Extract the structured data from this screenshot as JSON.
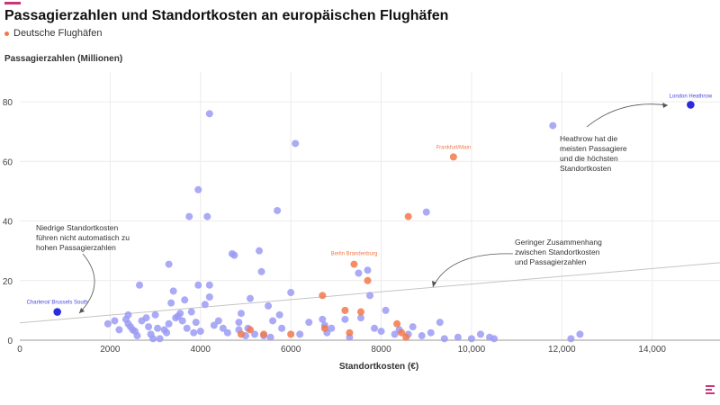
{
  "header": {
    "title": "Passagierzahlen und Standortkosten an europäischen Flughäfen"
  },
  "legend": {
    "items": [
      {
        "label": "Deutsche Flughäfen",
        "color": "#f2784b"
      }
    ]
  },
  "colors": {
    "other": "#9b9bf5",
    "german": "#f2784b",
    "highlight": "#2b2be0",
    "trend": "#c4c4c4",
    "grid": "#ececec"
  },
  "chart_data": {
    "type": "scatter",
    "title": "Passagierzahlen und Standortkosten an europäischen Flughäfen",
    "xlabel": "Standortkosten (€)",
    "ylabel": "Passagierzahlen (Millionen)",
    "xlim": [
      0,
      15500
    ],
    "ylim": [
      0,
      90
    ],
    "x_ticks": [
      0,
      2000,
      4000,
      6000,
      8000,
      10000,
      12000,
      14000
    ],
    "x_tick_labels": [
      "0",
      "2000",
      "4000",
      "6000",
      "8000",
      "10,000",
      "12,000",
      "14,000"
    ],
    "y_ticks": [
      0,
      20,
      40,
      60,
      80
    ],
    "y_tick_labels": [
      "0",
      "20",
      "40",
      "60",
      "80"
    ],
    "grid": true,
    "series": [
      {
        "name": "",
        "color": "#9b9bf5",
        "points": [
          [
            1950,
            5.5
          ],
          [
            2100,
            6.5
          ],
          [
            2200,
            3.5
          ],
          [
            2350,
            7
          ],
          [
            2400,
            8.5
          ],
          [
            2400,
            5.5
          ],
          [
            2450,
            4.5
          ],
          [
            2500,
            3.5
          ],
          [
            2550,
            3
          ],
          [
            2600,
            1.5
          ],
          [
            2650,
            18.5
          ],
          [
            2700,
            6.5
          ],
          [
            2800,
            7.5
          ],
          [
            2850,
            4.5
          ],
          [
            2900,
            2
          ],
          [
            2950,
            0.5
          ],
          [
            3000,
            8.5
          ],
          [
            3050,
            4
          ],
          [
            3100,
            0.5
          ],
          [
            3200,
            3.5
          ],
          [
            3250,
            2.5
          ],
          [
            3300,
            5.5
          ],
          [
            3300,
            25.5
          ],
          [
            3350,
            12.5
          ],
          [
            3400,
            16.5
          ],
          [
            3450,
            7.5
          ],
          [
            3500,
            8
          ],
          [
            3550,
            9
          ],
          [
            3600,
            6.5
          ],
          [
            3650,
            13.5
          ],
          [
            3700,
            4
          ],
          [
            3750,
            41.5
          ],
          [
            3800,
            9.5
          ],
          [
            3850,
            2.5
          ],
          [
            3900,
            6
          ],
          [
            3950,
            18.5
          ],
          [
            3950,
            50.5
          ],
          [
            4000,
            3
          ],
          [
            4100,
            12
          ],
          [
            4150,
            41.5
          ],
          [
            4200,
            76
          ],
          [
            4200,
            18.5
          ],
          [
            4200,
            14.5
          ],
          [
            4300,
            5
          ],
          [
            4400,
            6.5
          ],
          [
            4500,
            4
          ],
          [
            4600,
            2.5
          ],
          [
            4700,
            29
          ],
          [
            4750,
            28.5
          ],
          [
            4850,
            6
          ],
          [
            4850,
            3.5
          ],
          [
            4900,
            9
          ],
          [
            5000,
            1.5
          ],
          [
            5050,
            4
          ],
          [
            5100,
            14
          ],
          [
            5200,
            2
          ],
          [
            5300,
            30
          ],
          [
            5350,
            23
          ],
          [
            5400,
            1.5
          ],
          [
            5500,
            11.5
          ],
          [
            5550,
            1
          ],
          [
            5600,
            6.5
          ],
          [
            5700,
            43.5
          ],
          [
            5750,
            8.5
          ],
          [
            5800,
            4
          ],
          [
            6000,
            16
          ],
          [
            6100,
            66
          ],
          [
            6200,
            2
          ],
          [
            6400,
            6
          ],
          [
            6700,
            7
          ],
          [
            6750,
            5
          ],
          [
            6800,
            2.5
          ],
          [
            6900,
            4
          ],
          [
            7200,
            7
          ],
          [
            7300,
            1
          ],
          [
            7500,
            22.5
          ],
          [
            7550,
            7.5
          ],
          [
            7700,
            23.5
          ],
          [
            7750,
            15
          ],
          [
            7850,
            4
          ],
          [
            8000,
            3
          ],
          [
            8100,
            10
          ],
          [
            8300,
            2
          ],
          [
            8400,
            3.5
          ],
          [
            8600,
            2
          ],
          [
            8700,
            4.5
          ],
          [
            8900,
            1.5
          ],
          [
            9000,
            43
          ],
          [
            9100,
            2.5
          ],
          [
            9300,
            6
          ],
          [
            9400,
            0.5
          ],
          [
            9700,
            1
          ],
          [
            10000,
            0.5
          ],
          [
            10200,
            2
          ],
          [
            10400,
            1
          ],
          [
            10500,
            0.5
          ],
          [
            11800,
            72
          ],
          [
            12200,
            0.5
          ],
          [
            12400,
            2
          ]
        ]
      },
      {
        "name": "Deutsche Flughäfen",
        "color": "#f2784b",
        "points": [
          [
            4900,
            2
          ],
          [
            5100,
            3.5
          ],
          [
            5400,
            2
          ],
          [
            6000,
            2
          ],
          [
            6700,
            15
          ],
          [
            6750,
            4
          ],
          [
            7200,
            10
          ],
          [
            7300,
            2.5
          ],
          [
            7400,
            25.5
          ],
          [
            7550,
            9.5
          ],
          [
            7700,
            20
          ],
          [
            8350,
            5.5
          ],
          [
            8450,
            2.5
          ],
          [
            8550,
            1
          ],
          [
            8600,
            41.5
          ],
          [
            9600,
            61.5
          ]
        ]
      },
      {
        "name": "",
        "color": "#2b2be0",
        "points": [
          [
            830,
            9.5
          ],
          [
            14850,
            79
          ]
        ]
      }
    ],
    "trendline": {
      "from": [
        0,
        5.8
      ],
      "to": [
        15500,
        26
      ]
    },
    "point_labels": [
      {
        "text": "London Heathrow",
        "x": 14850,
        "y": 79,
        "color": "#4848e0"
      },
      {
        "text": "Frankfurt/Main",
        "x": 9600,
        "y": 61.5,
        "color": "#f2784b"
      },
      {
        "text": "Berlin Brandenburg",
        "x": 7400,
        "y": 25.5,
        "color": "#f2784b"
      },
      {
        "text": "Charleroi/ Brussels South",
        "x": 830,
        "y": 9.5,
        "color": "#4848e0"
      }
    ],
    "annotations": [
      {
        "lines": [
          "Heathrow hat die",
          "meisten Passagiere",
          "und die höchsten",
          "Standortkosten"
        ]
      },
      {
        "lines": [
          "Niedrige Standortkosten",
          "führen nicht automatisch zu",
          "hohen Passagierzahlen"
        ]
      },
      {
        "lines": [
          "Geringer Zusammenhang",
          "zwischen Standortkosten",
          "und Passagierzahlen"
        ]
      }
    ]
  }
}
